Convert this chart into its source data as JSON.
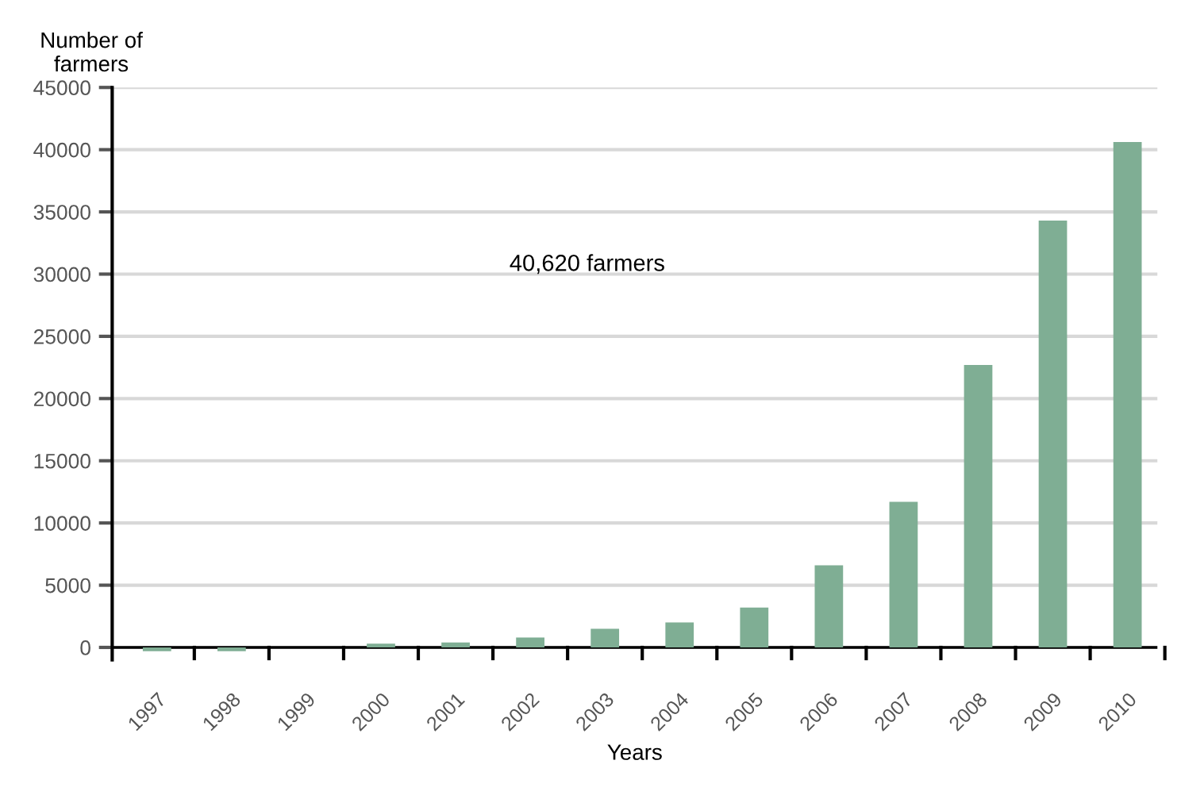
{
  "chart_data": {
    "type": "bar",
    "ylabel": "Number of\nfarmers",
    "xlabel": "Years",
    "categories": [
      "1997",
      "1998",
      "1999",
      "2000",
      "2001",
      "2002",
      "2003",
      "2004",
      "2005",
      "2006",
      "2007",
      "2008",
      "2009",
      "2010"
    ],
    "values": [
      -300,
      -300,
      0,
      300,
      400,
      800,
      1500,
      2000,
      3200,
      6600,
      11700,
      22700,
      34300,
      40620
    ],
    "color": "#7fae94",
    "ylim": [
      -1000,
      45000
    ],
    "yticks": [
      0,
      5000,
      10000,
      15000,
      20000,
      25000,
      30000,
      35000,
      40000,
      45000
    ],
    "grid": "y",
    "annotations": [
      "40,620 farmers"
    ]
  }
}
